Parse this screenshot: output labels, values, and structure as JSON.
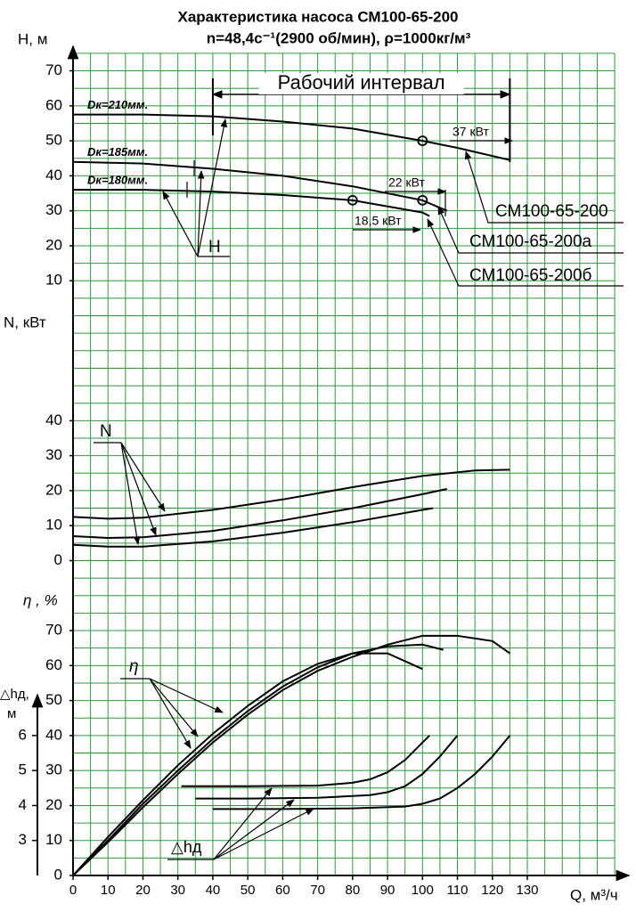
{
  "chart_data": [
    {
      "type": "line",
      "title": "Характеристика насоса СМ100-65-200",
      "subtitle": "n=48,4с⁻¹(2900 об/мин), ρ=1000кг/м³",
      "ylabel": "H, м",
      "xlim": [
        0,
        130
      ],
      "ylim": [
        0,
        70
      ],
      "yticks": [
        10,
        20,
        30,
        40,
        50,
        60,
        70
      ],
      "grid": true,
      "series": [
        {
          "name": "Dк=210мм.",
          "color": "#000000",
          "x": [
            0,
            20,
            40,
            60,
            80,
            100,
            110,
            125
          ],
          "values": [
            57.5,
            57.5,
            57,
            55.5,
            53.5,
            50,
            48,
            44.5
          ]
        },
        {
          "name": "Dк=185мм.",
          "color": "#000000",
          "x": [
            0,
            20,
            40,
            60,
            80,
            100,
            107
          ],
          "values": [
            44,
            43.5,
            42,
            40,
            37,
            33,
            30
          ]
        },
        {
          "name": "Dк=180мм.",
          "color": "#000000",
          "x": [
            0,
            20,
            40,
            60,
            80,
            100,
            102
          ],
          "values": [
            36,
            36,
            35.5,
            34.5,
            33,
            29.5,
            28.5
          ]
        }
      ],
      "points": {
        "x": [
          100,
          80,
          100
        ],
        "y": [
          50,
          33,
          33
        ]
      },
      "work_range": {
        "label": "Рабочий интервал",
        "x": [
          40,
          125
        ]
      },
      "annotations": [
        "37 кВт",
        "22 кВт",
        "18,5 кВт",
        "СМ100-65-200",
        "СМ100-65-200а",
        "СМ100-65-200б",
        "H"
      ]
    },
    {
      "type": "line",
      "ylabel": "N, кВт",
      "xlim": [
        0,
        130
      ],
      "ylim": [
        0,
        40
      ],
      "yticks": [
        0,
        10,
        20,
        30,
        40
      ],
      "series": [
        {
          "color": "#000000",
          "x": [
            0,
            10,
            20,
            40,
            60,
            80,
            100,
            115,
            125
          ],
          "values": [
            12.5,
            12,
            12.3,
            14.5,
            17.5,
            21,
            24.2,
            25.8,
            26
          ]
        },
        {
          "color": "#000000",
          "x": [
            0,
            10,
            20,
            40,
            60,
            80,
            100,
            107
          ],
          "values": [
            7,
            6.5,
            6.7,
            8.5,
            11.5,
            15,
            19,
            20.5
          ]
        },
        {
          "color": "#000000",
          "x": [
            0,
            10,
            20,
            40,
            60,
            80,
            100,
            103
          ],
          "values": [
            4.5,
            4,
            4,
            5.5,
            8,
            11,
            14.5,
            15
          ]
        }
      ],
      "annotations": [
        "N"
      ]
    },
    {
      "type": "line",
      "ylabel": "η , %",
      "xlabel": "Q, м³/ч",
      "xlim": [
        0,
        130
      ],
      "ylim": [
        0,
        70
      ],
      "yticks": [
        0,
        10,
        20,
        30,
        40,
        50,
        60,
        70
      ],
      "xticks": [
        0,
        10,
        20,
        30,
        40,
        50,
        60,
        70,
        80,
        90,
        100,
        110,
        120,
        130
      ],
      "series": [
        {
          "color": "#000000",
          "x": [
            0,
            10,
            20,
            30,
            40,
            50,
            60,
            70,
            80,
            90,
            100
          ],
          "values": [
            0,
            11,
            21.5,
            31.5,
            40.5,
            48.5,
            55.5,
            60.5,
            63.5,
            63.5,
            59
          ]
        },
        {
          "color": "#000000",
          "x": [
            0,
            10,
            20,
            30,
            40,
            50,
            60,
            70,
            80,
            90,
            100,
            106
          ],
          "values": [
            0,
            10,
            20.5,
            30,
            39,
            47,
            54,
            59.5,
            63.5,
            65.5,
            66,
            64.5
          ]
        },
        {
          "color": "#000000",
          "x": [
            0,
            10,
            20,
            30,
            40,
            50,
            60,
            70,
            80,
            90,
            100,
            110,
            120,
            125
          ],
          "values": [
            0,
            9.5,
            19.5,
            29,
            38,
            46,
            53,
            58.5,
            62.5,
            66,
            68.5,
            68.5,
            67,
            63.5
          ]
        }
      ],
      "annotations": [
        "η"
      ]
    },
    {
      "type": "line",
      "ylabel": [
        "△hд,",
        "м"
      ],
      "xlim": [
        0,
        130
      ],
      "ylim": [
        2,
        6
      ],
      "yticks": [
        3,
        4,
        5,
        6
      ],
      "series": [
        {
          "color": "#000000",
          "x": [
            31,
            50,
            70,
            80,
            85,
            90,
            95,
            100,
            102
          ],
          "values": [
            4.55,
            4.55,
            4.57,
            4.65,
            4.75,
            4.95,
            5.3,
            5.8,
            6
          ]
        },
        {
          "color": "#000000",
          "x": [
            35,
            50,
            70,
            85,
            90,
            95,
            100,
            105,
            110
          ],
          "values": [
            4.2,
            4.2,
            4.22,
            4.3,
            4.38,
            4.55,
            4.9,
            5.4,
            6
          ]
        },
        {
          "color": "#000000",
          "x": [
            40,
            60,
            80,
            95,
            100,
            105,
            110,
            115,
            120,
            125
          ],
          "values": [
            3.9,
            3.9,
            3.92,
            3.97,
            4.05,
            4.2,
            4.5,
            4.9,
            5.4,
            6
          ]
        }
      ],
      "annotations": [
        "△hд"
      ]
    }
  ]
}
